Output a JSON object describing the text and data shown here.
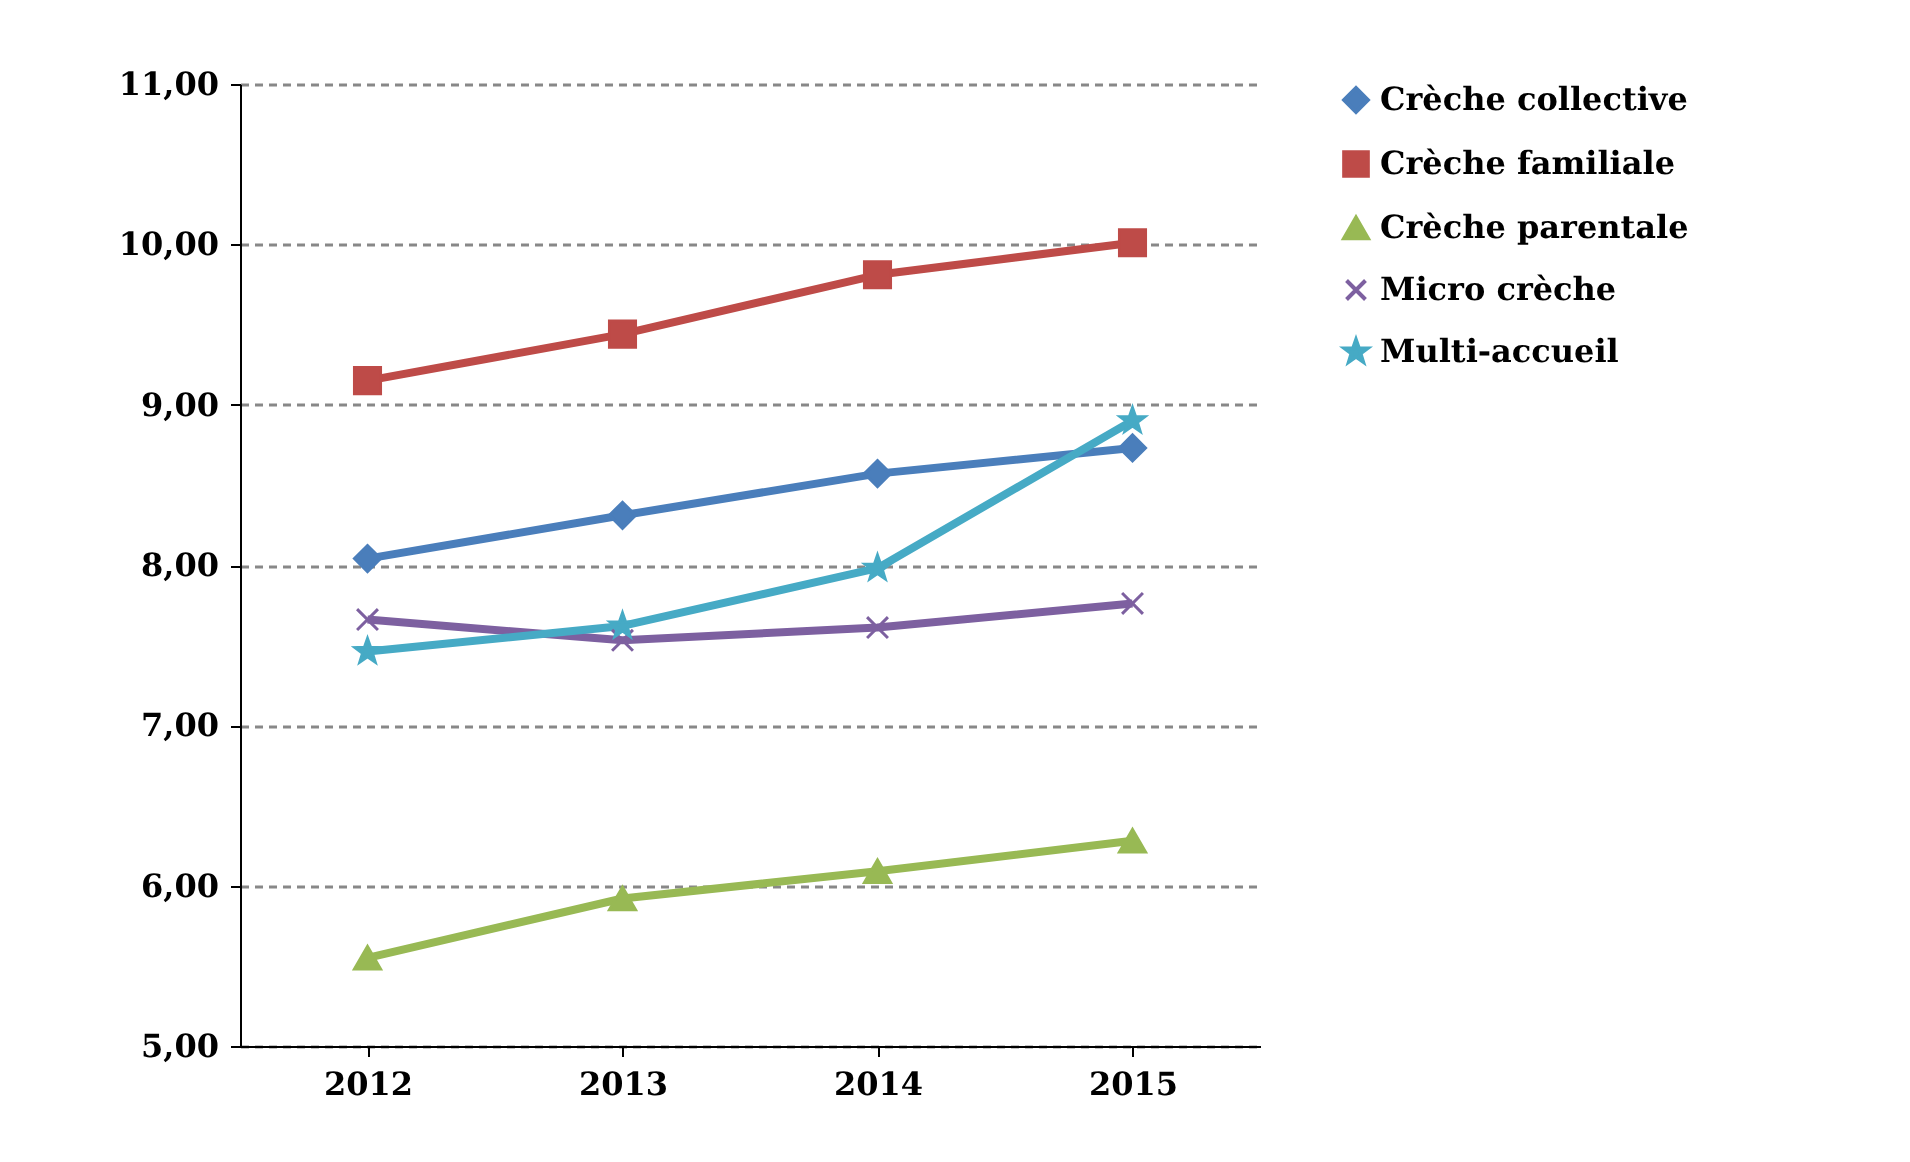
{
  "chart_data": {
    "type": "line",
    "categories": [
      "2012",
      "2013",
      "2014",
      "2015"
    ],
    "ylim": [
      5,
      11
    ],
    "yticks": [
      {
        "value": 5,
        "label": "5,00"
      },
      {
        "value": 6,
        "label": "6,00"
      },
      {
        "value": 7,
        "label": "7,00"
      },
      {
        "value": 8,
        "label": "8,00"
      },
      {
        "value": 9,
        "label": "9,00"
      },
      {
        "value": 10,
        "label": "10,00"
      },
      {
        "value": 11,
        "label": "11,00"
      }
    ],
    "grid": "y",
    "legend": "right",
    "line_style": "solid",
    "series": [
      {
        "name": "Crèche collective",
        "color": "#4a7ebb",
        "marker": "diamond",
        "values": [
          8.04,
          8.31,
          8.57,
          8.73
        ]
      },
      {
        "name": "Crèche familiale",
        "color": "#be4b48",
        "marker": "square",
        "values": [
          9.15,
          9.44,
          9.81,
          10.01
        ]
      },
      {
        "name": "Crèche parentale",
        "color": "#98b954",
        "marker": "triangle",
        "values": [
          5.55,
          5.92,
          6.09,
          6.28
        ]
      },
      {
        "name": "Micro crèche",
        "color": "#7d60a0",
        "marker": "cross",
        "values": [
          7.66,
          7.53,
          7.61,
          7.76
        ]
      },
      {
        "name": "Multi-accueil",
        "color": "#46aac5",
        "marker": "star",
        "values": [
          7.46,
          7.62,
          7.98,
          8.9
        ]
      }
    ]
  }
}
